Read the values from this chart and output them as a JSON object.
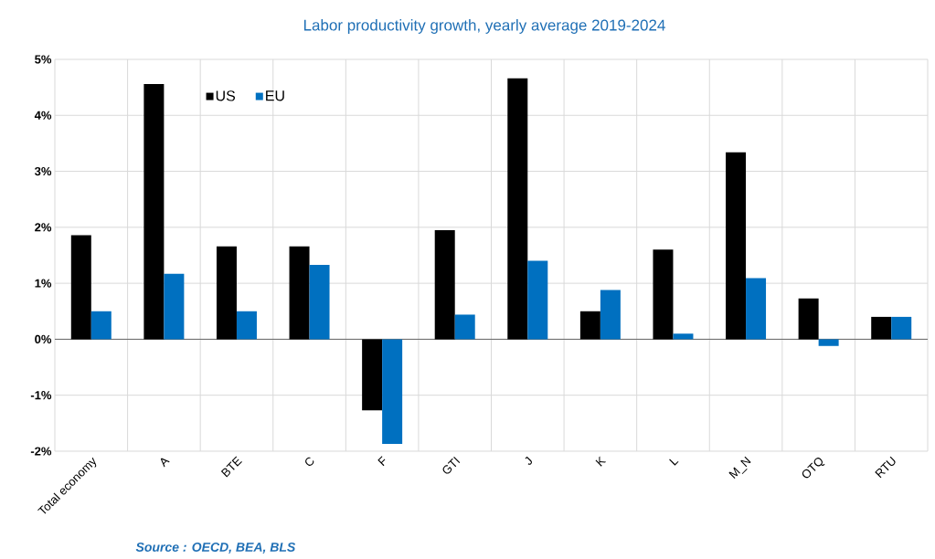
{
  "chart_data": {
    "type": "bar",
    "title": "Labor productivity growth, yearly average 2019-2024",
    "categories": [
      "Total economy",
      "A",
      "BTE",
      "C",
      "F",
      "GTI",
      "J",
      "K",
      "L",
      "M_N",
      "OTQ",
      "RTU"
    ],
    "series": [
      {
        "name": "US",
        "color": "#000000",
        "values": [
          1.86,
          4.56,
          1.66,
          1.66,
          -1.27,
          1.95,
          4.66,
          0.5,
          1.6,
          3.34,
          0.73,
          0.4
        ]
      },
      {
        "name": "EU",
        "color": "#0070c0",
        "values": [
          0.5,
          1.17,
          0.5,
          1.33,
          -1.87,
          0.44,
          1.4,
          0.88,
          0.1,
          1.09,
          -0.12,
          0.4
        ]
      }
    ],
    "ylim": [
      -2,
      5
    ],
    "yticks": [
      {
        "value": -2,
        "label": "-2%"
      },
      {
        "value": -1,
        "label": "-1%"
      },
      {
        "value": 0,
        "label": "0%"
      },
      {
        "value": 1,
        "label": "1%"
      },
      {
        "value": 2,
        "label": "2%"
      },
      {
        "value": 3,
        "label": "3%"
      },
      {
        "value": 4,
        "label": "4%"
      },
      {
        "value": 5,
        "label": "5%"
      }
    ],
    "grid": true,
    "legend": "top left",
    "annotations": [
      "Source  : OECD, BEA, BLS"
    ]
  }
}
